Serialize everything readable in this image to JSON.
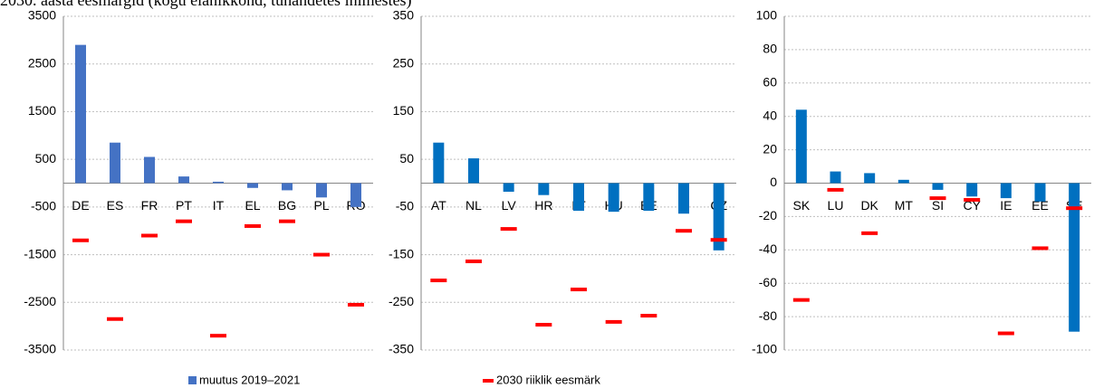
{
  "title": "2030. aasta eesmärgid (kogu elanikkond, tuhandetes inimestes)",
  "chart_data": [
    {
      "type": "bar",
      "categories": [
        "DE",
        "ES",
        "FR",
        "PT",
        "IT",
        "EL",
        "BG",
        "PL",
        "RO"
      ],
      "series": [
        {
          "name": "muutus 2019–2021",
          "color": "#4472c4",
          "values": [
            2900,
            850,
            550,
            140,
            30,
            -100,
            -150,
            -300,
            -500
          ]
        },
        {
          "name": "2030 riiklik eesmärk",
          "color": "#ff0000",
          "marker": "dash",
          "values": [
            -1200,
            -2850,
            -1100,
            -800,
            -3200,
            -900,
            -800,
            -1500,
            -2550
          ]
        }
      ],
      "ylim": [
        -3500,
        3500
      ],
      "yticks": [
        -3500,
        -2500,
        -1500,
        -500,
        500,
        1500,
        2500,
        3500
      ],
      "grid": true
    },
    {
      "type": "bar",
      "categories": [
        "AT",
        "NL",
        "LV",
        "HR",
        "LT",
        "HU",
        "BE",
        "FI",
        "CZ"
      ],
      "series": [
        {
          "name": "muutus 2019–2021",
          "color": "#0070c0",
          "values": [
            85,
            52,
            -18,
            -25,
            -58,
            -60,
            -58,
            -64,
            -141
          ]
        },
        {
          "name": "2030 riiklik eesmärk",
          "color": "#ff0000",
          "marker": "dash",
          "values": [
            -204,
            -164,
            -96,
            -297,
            -223,
            -291,
            -278,
            -100,
            -119
          ]
        }
      ],
      "ylim": [
        -350,
        350
      ],
      "yticks": [
        -350,
        -250,
        -150,
        -50,
        50,
        150,
        250,
        350
      ],
      "grid": true
    },
    {
      "type": "bar",
      "categories": [
        "SK",
        "LU",
        "DK",
        "MT",
        "SI",
        "CY",
        "IE",
        "EE",
        "SE"
      ],
      "series": [
        {
          "name": "muutus 2019–2021",
          "color": "#0070c0",
          "values": [
            44,
            7,
            6,
            2,
            -4,
            -8,
            -9,
            -11,
            -89
          ]
        },
        {
          "name": "2030 riiklik eesmärk",
          "color": "#ff0000",
          "marker": "dash",
          "values": [
            -70,
            -4,
            -30,
            null,
            -9,
            -10,
            -90,
            -39,
            -15
          ]
        }
      ],
      "ylim": [
        -100,
        100
      ],
      "yticks": [
        -100,
        -80,
        -60,
        -40,
        -20,
        0,
        20,
        40,
        60,
        80,
        100
      ],
      "grid": true
    }
  ]
}
